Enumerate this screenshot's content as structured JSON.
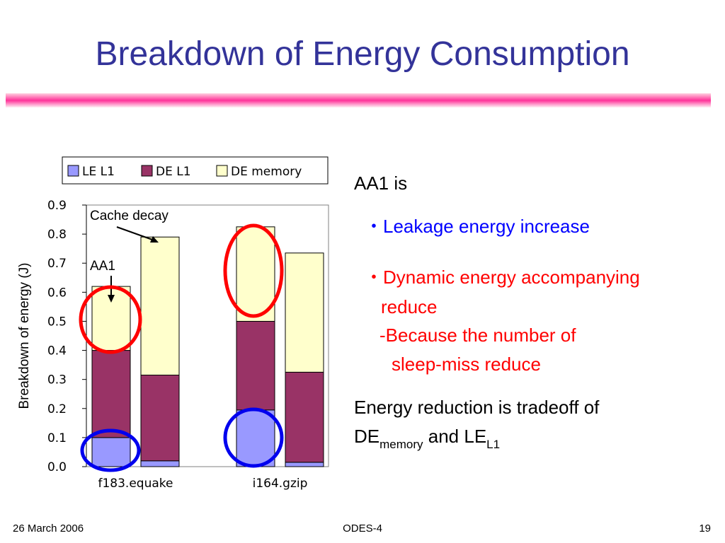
{
  "title": "Breakdown of Energy Consumption",
  "chart_data": {
    "type": "stacked_bar",
    "ylabel": "Breakdown of energy (J)",
    "categories": [
      "f183.equake",
      null,
      "i164.gzip",
      null
    ],
    "series": [
      {
        "name": "LE L1",
        "color": "#9999ff",
        "values": [
          0.1,
          0.02,
          0.195,
          0.015
        ]
      },
      {
        "name": "DE L1",
        "color": "#993366",
        "values": [
          0.3,
          0.295,
          0.305,
          0.31
        ]
      },
      {
        "name": "DE memory",
        "color": "#ffffcc",
        "values": [
          0.22,
          0.475,
          0.325,
          0.41
        ]
      }
    ],
    "ylim": [
      0,
      0.9
    ],
    "yticks": [
      {
        "value": 0,
        "label": "0.0"
      },
      0.1,
      0.2,
      0.3,
      0.4,
      0.5,
      0.6,
      0.7,
      0.8,
      0.9
    ],
    "annotations": [
      "Cache decay",
      "AA1"
    ]
  },
  "side": {
    "intro": "AA1 is",
    "bullet1": "・Leakage energy increase",
    "bullet2": [
      "・Dynamic energy accompanying",
      "reduce",
      "-Because the number of",
      "sleep-miss reduce"
    ],
    "tradeoff": {
      "line1": "Energy reduction is tradeoff of",
      "parts": [
        "DE",
        "memory",
        " and LE",
        "L1"
      ]
    }
  },
  "footer": {
    "date": "26 March 2006",
    "center": "ODES-4",
    "page": "19"
  }
}
